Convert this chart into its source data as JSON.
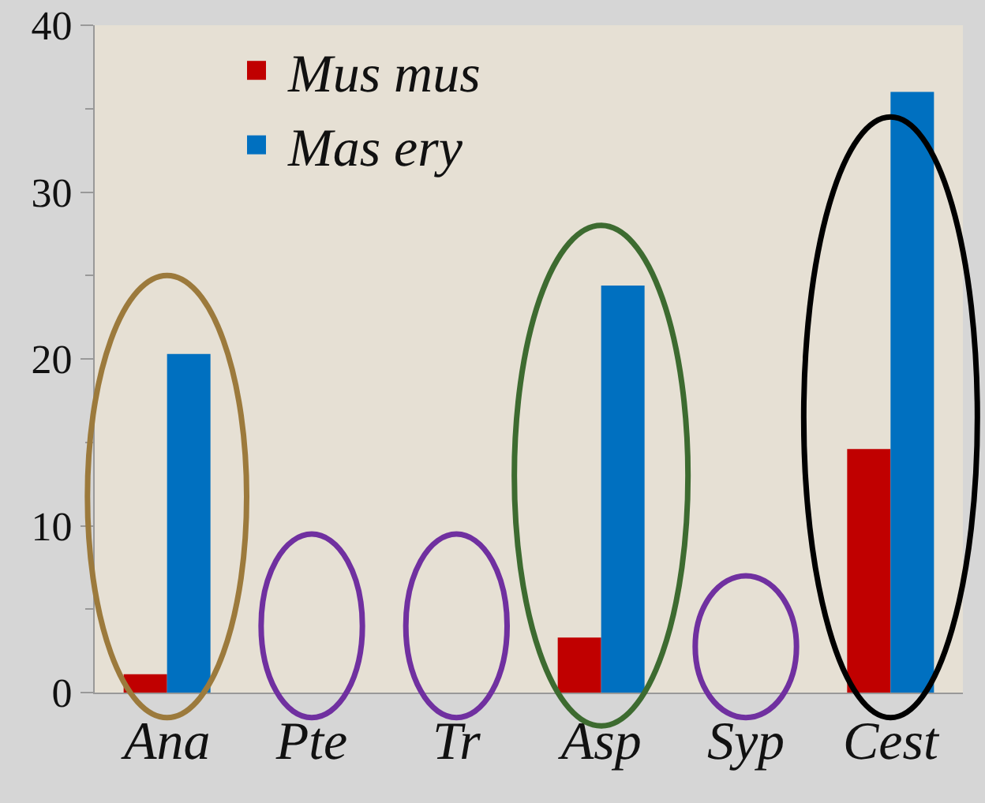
{
  "chart_data": {
    "type": "bar",
    "categories": [
      "Ana",
      "Pte",
      "Tr",
      "Asp",
      "Syp",
      "Cest"
    ],
    "series": [
      {
        "name": "Mus mus",
        "color": "#c00000",
        "values": [
          1.1,
          0,
          0,
          3.3,
          0,
          14.6
        ]
      },
      {
        "name": "Mas ery",
        "color": "#0070c0",
        "values": [
          20.3,
          0,
          0,
          24.4,
          0,
          36
        ]
      }
    ],
    "ylim": [
      0,
      40
    ],
    "yticks": [
      0,
      10,
      20,
      30,
      40
    ],
    "grid": false,
    "legend": "top left"
  }
}
